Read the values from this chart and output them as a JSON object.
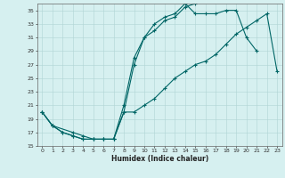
{
  "xlabel": "Humidex (Indice chaleur)",
  "bg_color": "#d6f0f0",
  "line_color": "#006666",
  "xlim": [
    -0.5,
    23.5
  ],
  "ylim": [
    15,
    36
  ],
  "xticks": [
    0,
    1,
    2,
    3,
    4,
    5,
    6,
    7,
    8,
    9,
    10,
    11,
    12,
    13,
    14,
    15,
    16,
    17,
    18,
    19,
    20,
    21,
    22,
    23
  ],
  "yticks": [
    15,
    17,
    19,
    21,
    23,
    25,
    27,
    29,
    31,
    33,
    35
  ],
  "line1_x": [
    0,
    1,
    2,
    3,
    4,
    5,
    6,
    7,
    8,
    9,
    10,
    11,
    12,
    13,
    14,
    15,
    16,
    17,
    18,
    19,
    20,
    21
  ],
  "line1_y": [
    20,
    18,
    17,
    16.5,
    16,
    16,
    16,
    16,
    21,
    28,
    31,
    33,
    34,
    34.5,
    36,
    34.5,
    34.5,
    34.5,
    35,
    35,
    31,
    29
  ],
  "line2_x": [
    0,
    1,
    2,
    3,
    4,
    5,
    6,
    7,
    8,
    9,
    10,
    11,
    12,
    13,
    14,
    15
  ],
  "line2_y": [
    20,
    18,
    17,
    16.5,
    16,
    16,
    16,
    16,
    20,
    27,
    31,
    32,
    33.5,
    34,
    35.5,
    36
  ],
  "line3_x": [
    0,
    1,
    3,
    4,
    5,
    6,
    7,
    8,
    9,
    10,
    11,
    12,
    13,
    14,
    15,
    16,
    17,
    18,
    19,
    20,
    21,
    22,
    23
  ],
  "line3_y": [
    20,
    18,
    17,
    16.5,
    16,
    16,
    16,
    20,
    20,
    21,
    22,
    23.5,
    25,
    26,
    27,
    27.5,
    28.5,
    30,
    31.5,
    32.5,
    33.5,
    34.5,
    26
  ]
}
